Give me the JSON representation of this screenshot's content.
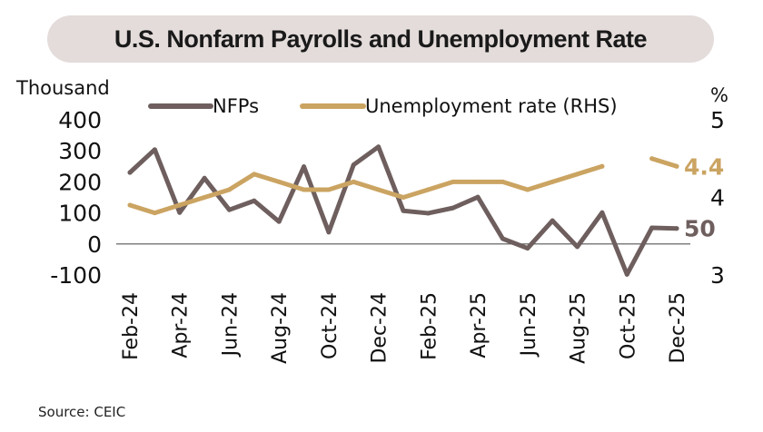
{
  "chart_data": {
    "type": "line",
    "title": "U.S. Nonfarm Payrolls and Unemployment Rate",
    "ylabel_left": "Thousand",
    "ylabel_right": "%",
    "ylim_left": [
      -100,
      400
    ],
    "ylim_right": [
      3,
      5
    ],
    "yticks_left": [
      "400",
      "300",
      "200",
      "100",
      "0",
      "-100"
    ],
    "yticks_right": [
      "5",
      "4",
      "3"
    ],
    "x": [
      "Feb-24",
      "Mar-24",
      "Apr-24",
      "May-24",
      "Jun-24",
      "Jul-24",
      "Aug-24",
      "Sep-24",
      "Oct-24",
      "Nov-24",
      "Dec-24",
      "Jan-25",
      "Feb-25",
      "Mar-25",
      "Apr-25",
      "May-25",
      "Jun-25",
      "Jul-25",
      "Aug-25",
      "Sep-25",
      "Oct-25",
      "Nov-25",
      "Dec-25"
    ],
    "xtick_labels": [
      "Feb-24",
      "Apr-24",
      "Jun-24",
      "Aug-24",
      "Oct-24",
      "Dec-24",
      "Feb-25",
      "Apr-25",
      "Jun-25",
      "Aug-25",
      "Oct-25",
      "Dec-25"
    ],
    "series": [
      {
        "name": "NFPs",
        "axis": "left",
        "color": "#6e5f5e",
        "values": [
          230,
          304,
          101,
          212,
          110,
          139,
          72,
          249,
          38,
          255,
          313,
          107,
          99,
          116,
          151,
          17,
          -14,
          75,
          -9,
          101,
          -98,
          52,
          50
        ],
        "end_label": "50"
      },
      {
        "name": "Unemployment rate (RHS)",
        "axis": "right",
        "color": "#cba462",
        "values": [
          3.9,
          3.8,
          3.9,
          4.0,
          4.1,
          4.3,
          4.2,
          4.1,
          4.1,
          4.2,
          4.1,
          4.0,
          4.1,
          4.2,
          4.2,
          4.2,
          4.1,
          4.2,
          4.3,
          4.4,
          null,
          4.5,
          4.4
        ],
        "end_label": "4.4"
      }
    ],
    "legend_placement": "top",
    "grid": false
  },
  "source": "Source: CEIC"
}
